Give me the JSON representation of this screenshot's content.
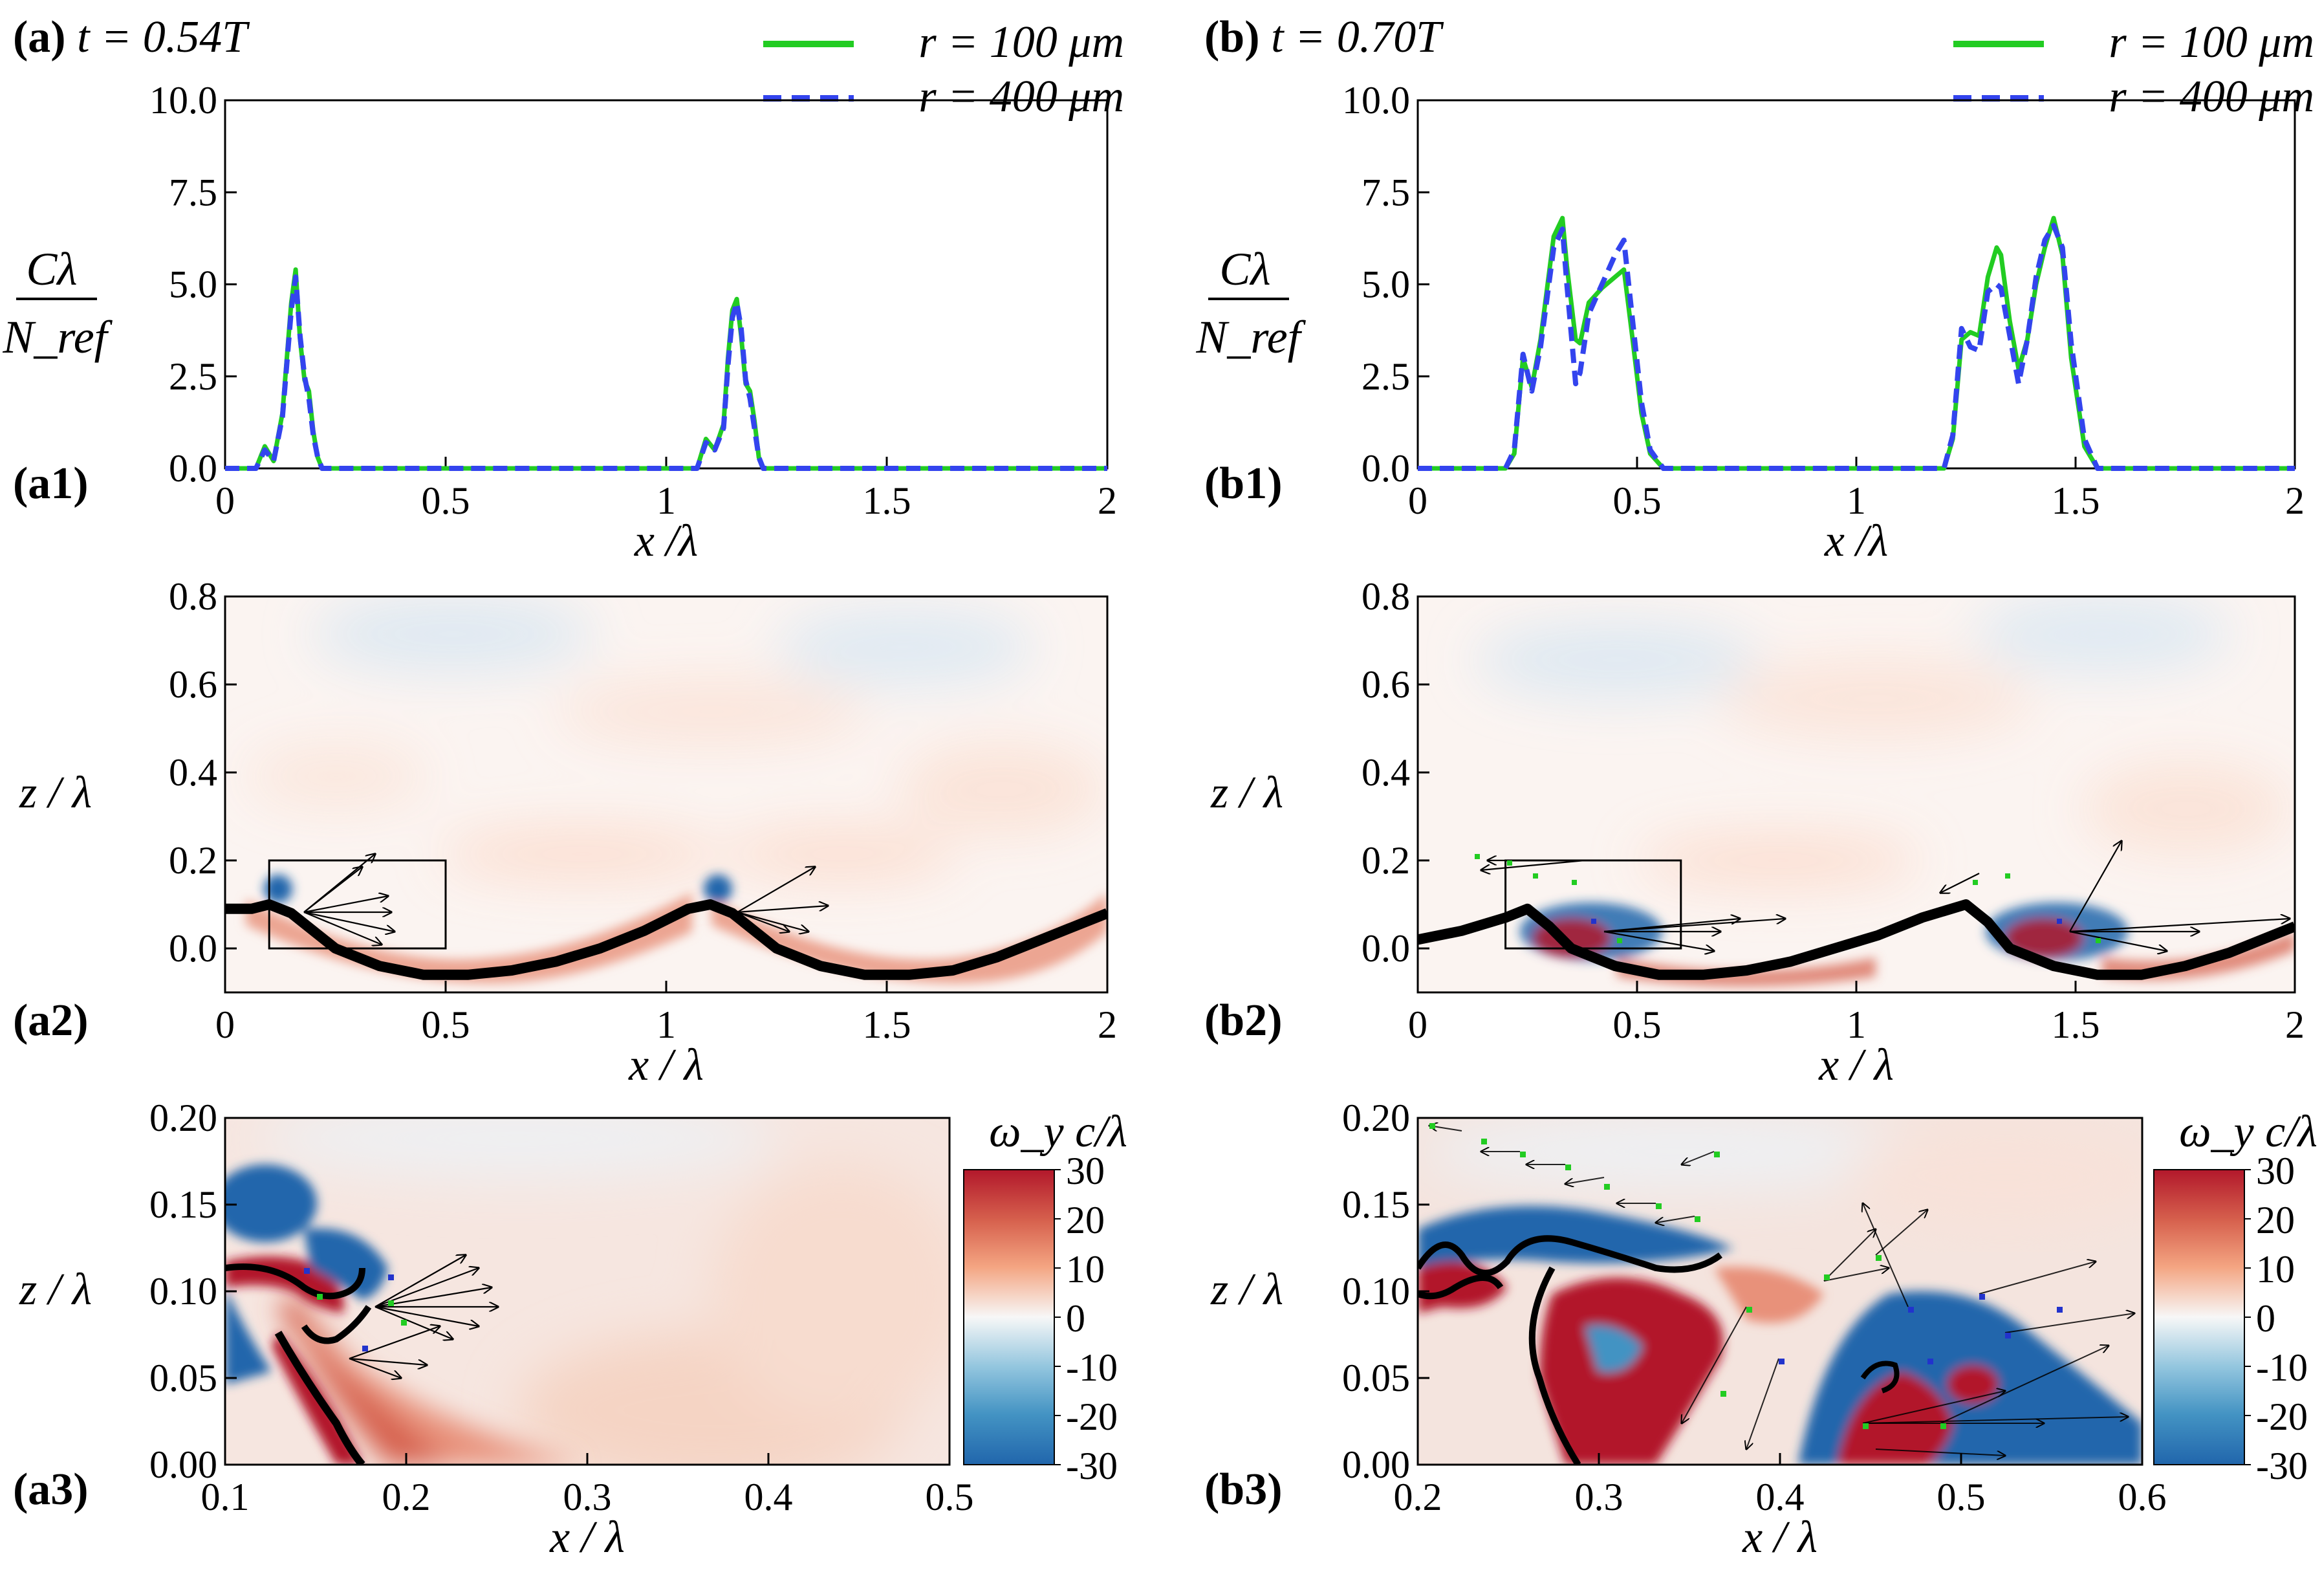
{
  "title": {
    "a": {
      "tag": "(a)",
      "text": "t = 0.54T"
    },
    "b": {
      "tag": "(b)",
      "text": "t = 0.70T"
    }
  },
  "legend": [
    {
      "label": "r = 100 μm",
      "color": "#22cc22",
      "style": "solid"
    },
    {
      "label": "r = 400 μm",
      "color": "#3344ee",
      "style": "dashed"
    }
  ],
  "colorbar": {
    "title": "ω_y c/λ",
    "ticks": [
      "30",
      "20",
      "10",
      "0",
      "-10",
      "-20",
      "-30"
    ],
    "colors": [
      "#b2182b",
      "#d6604d",
      "#f4a582",
      "#f7f7f7",
      "#92c5de",
      "#4393c3",
      "#2166ac"
    ]
  },
  "chart_data": [
    {
      "id": "a1",
      "panel_label": "(a1)",
      "type": "line",
      "xlabel": "x /λ",
      "ylabel_num": "Cλ",
      "ylabel_den": "N_ref",
      "xlim": [
        0,
        2
      ],
      "ylim": [
        0,
        10
      ],
      "xticks": [
        "0",
        "0.5",
        "1",
        "1.5",
        "2"
      ],
      "yticks": [
        "0.0",
        "2.5",
        "5.0",
        "7.5",
        "10.0"
      ],
      "series": [
        {
          "name": "r = 100 μm",
          "x": [
            0,
            0.07,
            0.09,
            0.11,
            0.13,
            0.15,
            0.16,
            0.17,
            0.18,
            0.19,
            0.2,
            0.21,
            0.22,
            0.25,
            1.0,
            1.07,
            1.09,
            1.11,
            1.13,
            1.14,
            1.15,
            1.16,
            1.17,
            1.18,
            1.19,
            1.2,
            1.21,
            1.22,
            1.25,
            2.0
          ],
          "y": [
            0,
            0,
            0.6,
            0.2,
            1.5,
            4.5,
            5.4,
            3.5,
            2.4,
            2.1,
            1.0,
            0.3,
            0,
            0,
            0,
            0,
            0.8,
            0.5,
            1.2,
            3.0,
            4.3,
            4.6,
            3.6,
            2.3,
            2.1,
            1.3,
            0.3,
            0,
            0,
            0
          ]
        },
        {
          "name": "r = 400 μm",
          "x": [
            0,
            0.07,
            0.09,
            0.11,
            0.13,
            0.15,
            0.16,
            0.17,
            0.18,
            0.19,
            0.2,
            0.21,
            0.22,
            0.25,
            1.0,
            1.07,
            1.09,
            1.11,
            1.13,
            1.14,
            1.15,
            1.16,
            1.17,
            1.18,
            1.19,
            1.2,
            1.21,
            1.22,
            1.25,
            2.0
          ],
          "y": [
            0,
            0,
            0.5,
            0.2,
            1.4,
            4.3,
            5.2,
            3.6,
            2.5,
            1.9,
            0.9,
            0.3,
            0,
            0,
            0,
            0,
            0.7,
            0.5,
            1.1,
            2.8,
            4.1,
            4.5,
            3.8,
            2.4,
            1.9,
            1.1,
            0.3,
            0,
            0,
            0
          ]
        }
      ]
    },
    {
      "id": "b1",
      "panel_label": "(b1)",
      "type": "line",
      "xlabel": "x /λ",
      "ylabel_num": "Cλ",
      "ylabel_den": "N_ref",
      "xlim": [
        0,
        2
      ],
      "ylim": [
        0,
        10
      ],
      "xticks": [
        "0",
        "0.5",
        "1",
        "1.5",
        "2"
      ],
      "yticks": [
        "0.0",
        "2.5",
        "5.0",
        "7.5",
        "10.0"
      ],
      "series": [
        {
          "name": "r = 100 μm",
          "x": [
            0,
            0.2,
            0.22,
            0.24,
            0.26,
            0.28,
            0.31,
            0.33,
            0.34,
            0.36,
            0.37,
            0.39,
            0.42,
            0.45,
            0.47,
            0.49,
            0.51,
            0.53,
            0.56,
            0.6,
            1.0,
            1.2,
            1.22,
            1.24,
            1.26,
            1.28,
            1.3,
            1.32,
            1.33,
            1.35,
            1.37,
            1.39,
            1.41,
            1.43,
            1.45,
            1.47,
            1.49,
            1.52,
            1.55,
            2.0
          ],
          "y": [
            0,
            0,
            0.4,
            3.0,
            2.2,
            3.5,
            6.3,
            6.8,
            5.5,
            3.5,
            3.4,
            4.5,
            4.9,
            5.2,
            5.4,
            3.5,
            1.5,
            0.4,
            0,
            0,
            0,
            0,
            0.8,
            3.5,
            3.7,
            3.6,
            5.2,
            6.0,
            5.8,
            4.0,
            2.7,
            3.5,
            5.0,
            6.0,
            6.8,
            5.8,
            3.0,
            0.6,
            0,
            0
          ]
        },
        {
          "name": "r = 400 μm",
          "x": [
            0,
            0.2,
            0.22,
            0.24,
            0.26,
            0.28,
            0.31,
            0.33,
            0.34,
            0.36,
            0.37,
            0.39,
            0.42,
            0.45,
            0.47,
            0.49,
            0.51,
            0.53,
            0.56,
            0.6,
            1.0,
            1.2,
            1.22,
            1.24,
            1.26,
            1.28,
            1.3,
            1.32,
            1.33,
            1.35,
            1.37,
            1.39,
            1.41,
            1.43,
            1.45,
            1.47,
            1.49,
            1.52,
            1.55,
            2.0
          ],
          "y": [
            0,
            0,
            0.5,
            3.1,
            2.1,
            3.3,
            6.0,
            6.5,
            5.0,
            2.3,
            2.6,
            4.2,
            5.0,
            5.8,
            6.2,
            4.0,
            1.8,
            0.5,
            0,
            0,
            0,
            0,
            0.9,
            3.8,
            3.3,
            3.2,
            4.8,
            5.0,
            4.9,
            3.6,
            2.3,
            3.5,
            5.2,
            6.2,
            6.6,
            6.0,
            3.4,
            0.8,
            0,
            0
          ]
        }
      ]
    },
    {
      "id": "a2",
      "panel_label": "(a2)",
      "type": "heatmap",
      "xlabel": "x / λ",
      "ylabel": "z / λ",
      "xlim": [
        0,
        2
      ],
      "ylim": [
        -0.1,
        0.8
      ],
      "xticks": [
        "0",
        "0.5",
        "1",
        "1.5",
        "2"
      ],
      "yticks": [
        "0.0",
        "0.2",
        "0.4",
        "0.6",
        "0.8"
      ],
      "surface": {
        "x": [
          0,
          0.06,
          0.1,
          0.15,
          0.25,
          0.35,
          0.45,
          0.55,
          0.65,
          0.75,
          0.85,
          0.95,
          1.05,
          1.1,
          1.15,
          1.25,
          1.35,
          1.45,
          1.55,
          1.65,
          1.75,
          1.85,
          1.95,
          2.0
        ],
        "z": [
          0.09,
          0.09,
          0.1,
          0.08,
          0.0,
          -0.04,
          -0.06,
          -0.06,
          -0.05,
          -0.03,
          0.0,
          0.04,
          0.09,
          0.1,
          0.08,
          0.0,
          -0.04,
          -0.06,
          -0.06,
          -0.05,
          -0.02,
          0.02,
          0.06,
          0.08
        ]
      },
      "zoom_box": {
        "x": [
          0.1,
          0.5
        ],
        "z": [
          0.0,
          0.2
        ]
      }
    },
    {
      "id": "b2",
      "panel_label": "(b2)",
      "type": "heatmap",
      "xlabel": "x / λ",
      "ylabel": "z / λ",
      "xlim": [
        0,
        2
      ],
      "ylim": [
        -0.1,
        0.8
      ],
      "xticks": [
        "0",
        "0.5",
        "1",
        "1.5",
        "2"
      ],
      "yticks": [
        "0.0",
        "0.2",
        "0.4",
        "0.6",
        "0.8"
      ],
      "surface": {
        "x": [
          0,
          0.1,
          0.2,
          0.25,
          0.3,
          0.35,
          0.45,
          0.55,
          0.65,
          0.75,
          0.85,
          0.95,
          1.05,
          1.15,
          1.25,
          1.3,
          1.35,
          1.45,
          1.55,
          1.65,
          1.75,
          1.85,
          1.95,
          2.0
        ],
        "z": [
          0.02,
          0.04,
          0.07,
          0.09,
          0.05,
          0.0,
          -0.04,
          -0.06,
          -0.06,
          -0.05,
          -0.03,
          0.0,
          0.03,
          0.07,
          0.1,
          0.06,
          0.0,
          -0.04,
          -0.06,
          -0.06,
          -0.04,
          -0.01,
          0.03,
          0.05
        ]
      },
      "zoom_box": {
        "x": [
          0.2,
          0.6
        ],
        "z": [
          0.0,
          0.2
        ]
      }
    },
    {
      "id": "a3",
      "panel_label": "(a3)",
      "type": "heatmap",
      "xlabel": "x / λ",
      "ylabel": "z / λ",
      "xlim": [
        0.1,
        0.5
      ],
      "ylim": [
        0,
        0.2
      ],
      "xticks": [
        "0.1",
        "0.2",
        "0.3",
        "0.4",
        "0.5"
      ],
      "yticks": [
        "0.00",
        "0.05",
        "0.10",
        "0.15",
        "0.20"
      ],
      "colorbar_range": [
        -30,
        30
      ]
    },
    {
      "id": "b3",
      "panel_label": "(b3)",
      "type": "heatmap",
      "xlabel": "x / λ",
      "ylabel": "z / λ",
      "xlim": [
        0.2,
        0.6
      ],
      "ylim": [
        0,
        0.2
      ],
      "xticks": [
        "0.2",
        "0.3",
        "0.4",
        "0.5",
        "0.6"
      ],
      "yticks": [
        "0.00",
        "0.05",
        "0.10",
        "0.15",
        "0.20"
      ],
      "colorbar_range": [
        -30,
        30
      ]
    }
  ]
}
